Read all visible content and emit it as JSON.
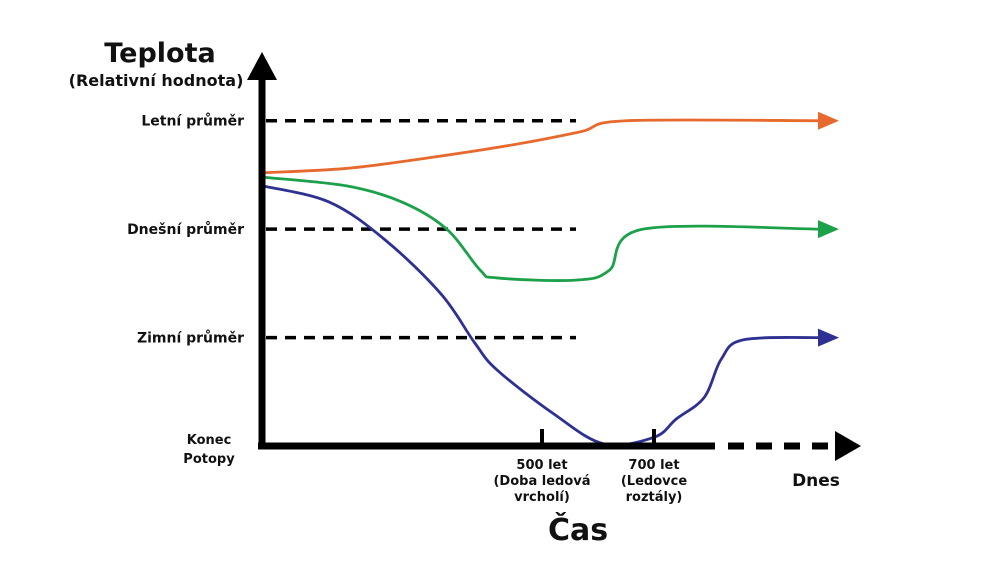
{
  "chart_data": {
    "type": "line",
    "title": "Teplota",
    "subtitle": "(Relativní hodnota)",
    "xlabel": "Čas",
    "x_start_label_lines": [
      "Konec",
      "Potopy"
    ],
    "x_end_label": "Dnes",
    "x_ticks": [
      {
        "x": 500,
        "lines": [
          "500 let",
          "(Doba ledová",
          "vrcholí)"
        ]
      },
      {
        "x": 700,
        "lines": [
          "700 let",
          "(Ledovce",
          "roztály)"
        ]
      }
    ],
    "reference_lines": [
      {
        "label": "Letní průměr",
        "y": 3
      },
      {
        "label": "Dnešní průměr",
        "y": 2
      },
      {
        "label": "Zimní průměr",
        "y": 1
      }
    ],
    "series": [
      {
        "key": "summer",
        "color": "#E8692E",
        "points": [
          [
            0,
            2.52
          ],
          [
            150,
            2.56
          ],
          [
            300,
            2.66
          ],
          [
            450,
            2.78
          ],
          [
            570,
            2.9
          ],
          [
            650,
            3.0
          ],
          [
            1000,
            3.0
          ]
        ]
      },
      {
        "key": "today",
        "color": "#1DA04A",
        "points": [
          [
            0,
            2.48
          ],
          [
            150,
            2.4
          ],
          [
            250,
            2.25
          ],
          [
            330,
            2.0
          ],
          [
            390,
            1.62
          ],
          [
            420,
            1.55
          ],
          [
            560,
            1.53
          ],
          [
            620,
            1.62
          ],
          [
            680,
            2.0
          ],
          [
            1000,
            2.0
          ]
        ]
      },
      {
        "key": "winter",
        "color": "#2E3192",
        "points": [
          [
            0,
            2.4
          ],
          [
            120,
            2.25
          ],
          [
            220,
            1.9
          ],
          [
            320,
            1.4
          ],
          [
            380,
            0.95
          ],
          [
            420,
            0.7
          ],
          [
            520,
            0.3
          ],
          [
            610,
            0.02
          ],
          [
            700,
            0.08
          ],
          [
            740,
            0.25
          ],
          [
            790,
            0.45
          ],
          [
            820,
            0.8
          ],
          [
            860,
            0.98
          ],
          [
            1000,
            1.0
          ]
        ]
      }
    ],
    "xlim": [
      0,
      1000
    ],
    "ylim": [
      0,
      3.8
    ]
  }
}
